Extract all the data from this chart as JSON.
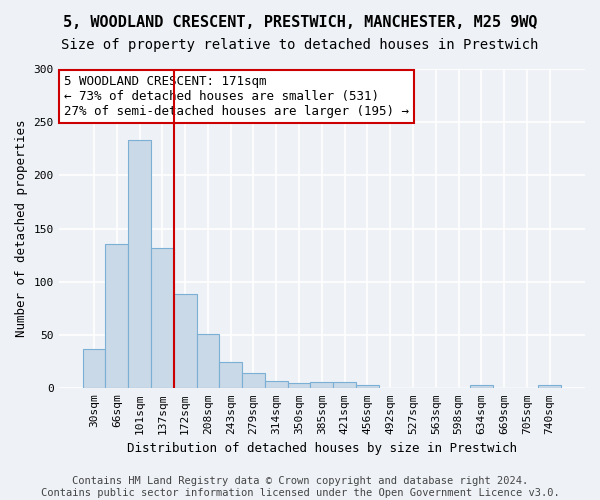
{
  "title": "5, WOODLAND CRESCENT, PRESTWICH, MANCHESTER, M25 9WQ",
  "subtitle": "Size of property relative to detached houses in Prestwich",
  "xlabel": "Distribution of detached houses by size in Prestwich",
  "ylabel": "Number of detached properties",
  "bin_labels": [
    "30sqm",
    "66sqm",
    "101sqm",
    "137sqm",
    "172sqm",
    "208sqm",
    "243sqm",
    "279sqm",
    "314sqm",
    "350sqm",
    "385sqm",
    "421sqm",
    "456sqm",
    "492sqm",
    "527sqm",
    "563sqm",
    "598sqm",
    "634sqm",
    "669sqm",
    "705sqm",
    "740sqm"
  ],
  "bar_values": [
    37,
    136,
    233,
    132,
    89,
    51,
    25,
    14,
    7,
    5,
    6,
    6,
    3,
    0,
    0,
    0,
    0,
    3,
    0,
    0,
    3
  ],
  "bar_color": "#c9d9e8",
  "bar_edge_color": "#7bafd4",
  "vline_x_index": 4,
  "vline_color": "#cc0000",
  "annotation_text": "5 WOODLAND CRESCENT: 171sqm\n← 73% of detached houses are smaller (531)\n27% of semi-detached houses are larger (195) →",
  "annotation_box_color": "white",
  "annotation_box_edge_color": "#cc0000",
  "ylim": [
    0,
    300
  ],
  "yticks": [
    0,
    50,
    100,
    150,
    200,
    250,
    300
  ],
  "footer_text": "Contains HM Land Registry data © Crown copyright and database right 2024.\nContains public sector information licensed under the Open Government Licence v3.0.",
  "background_color": "#eef2f7",
  "grid_color": "#ffffff",
  "title_fontsize": 11,
  "subtitle_fontsize": 10,
  "label_fontsize": 9,
  "tick_fontsize": 8,
  "footer_fontsize": 7.5
}
